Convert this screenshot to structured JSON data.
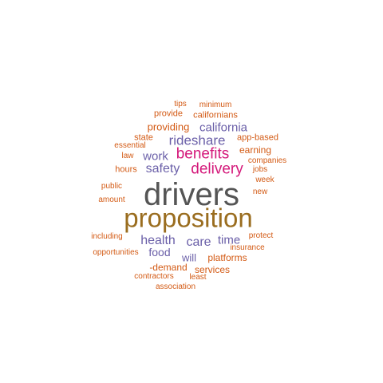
{
  "colors": {
    "gray": "#555555",
    "brown": "#9a6d1f",
    "magenta": "#d4187a",
    "purple": "#6a5fa8",
    "orange": "#d35a14"
  },
  "words": [
    {
      "text": "drivers",
      "color": "gray"
    },
    {
      "text": "proposition",
      "color": "brown"
    },
    {
      "text": "benefits",
      "color": "magenta"
    },
    {
      "text": "delivery",
      "color": "magenta"
    },
    {
      "text": "rideshare",
      "color": "purple"
    },
    {
      "text": "safety",
      "color": "purple"
    },
    {
      "text": "work",
      "color": "purple"
    },
    {
      "text": "california",
      "color": "purple"
    },
    {
      "text": "health",
      "color": "purple"
    },
    {
      "text": "care",
      "color": "purple"
    },
    {
      "text": "time",
      "color": "purple"
    },
    {
      "text": "food",
      "color": "purple"
    },
    {
      "text": "will",
      "color": "purple"
    },
    {
      "text": "providing",
      "color": "orange"
    },
    {
      "text": "earning",
      "color": "orange"
    },
    {
      "text": "platforms",
      "color": "orange"
    },
    {
      "text": "state",
      "color": "orange"
    },
    {
      "text": "hours",
      "color": "orange"
    },
    {
      "text": "app-based",
      "color": "orange"
    },
    {
      "text": "californians",
      "color": "orange"
    },
    {
      "text": "provide",
      "color": "orange"
    },
    {
      "text": "tips",
      "color": "orange"
    },
    {
      "text": "minimum",
      "color": "orange"
    },
    {
      "text": "essential",
      "color": "orange"
    },
    {
      "text": "law",
      "color": "orange"
    },
    {
      "text": "companies",
      "color": "orange"
    },
    {
      "text": "jobs",
      "color": "orange"
    },
    {
      "text": "week",
      "color": "orange"
    },
    {
      "text": "new",
      "color": "orange"
    },
    {
      "text": "public",
      "color": "orange"
    },
    {
      "text": "amount",
      "color": "orange"
    },
    {
      "text": "including",
      "color": "orange"
    },
    {
      "text": "protect",
      "color": "orange"
    },
    {
      "text": "insurance",
      "color": "orange"
    },
    {
      "text": "opportunities",
      "color": "orange"
    },
    {
      "text": "-demand",
      "color": "orange"
    },
    {
      "text": "services",
      "color": "orange"
    },
    {
      "text": "contractors",
      "color": "orange"
    },
    {
      "text": "least",
      "color": "orange"
    },
    {
      "text": "association",
      "color": "orange"
    }
  ]
}
